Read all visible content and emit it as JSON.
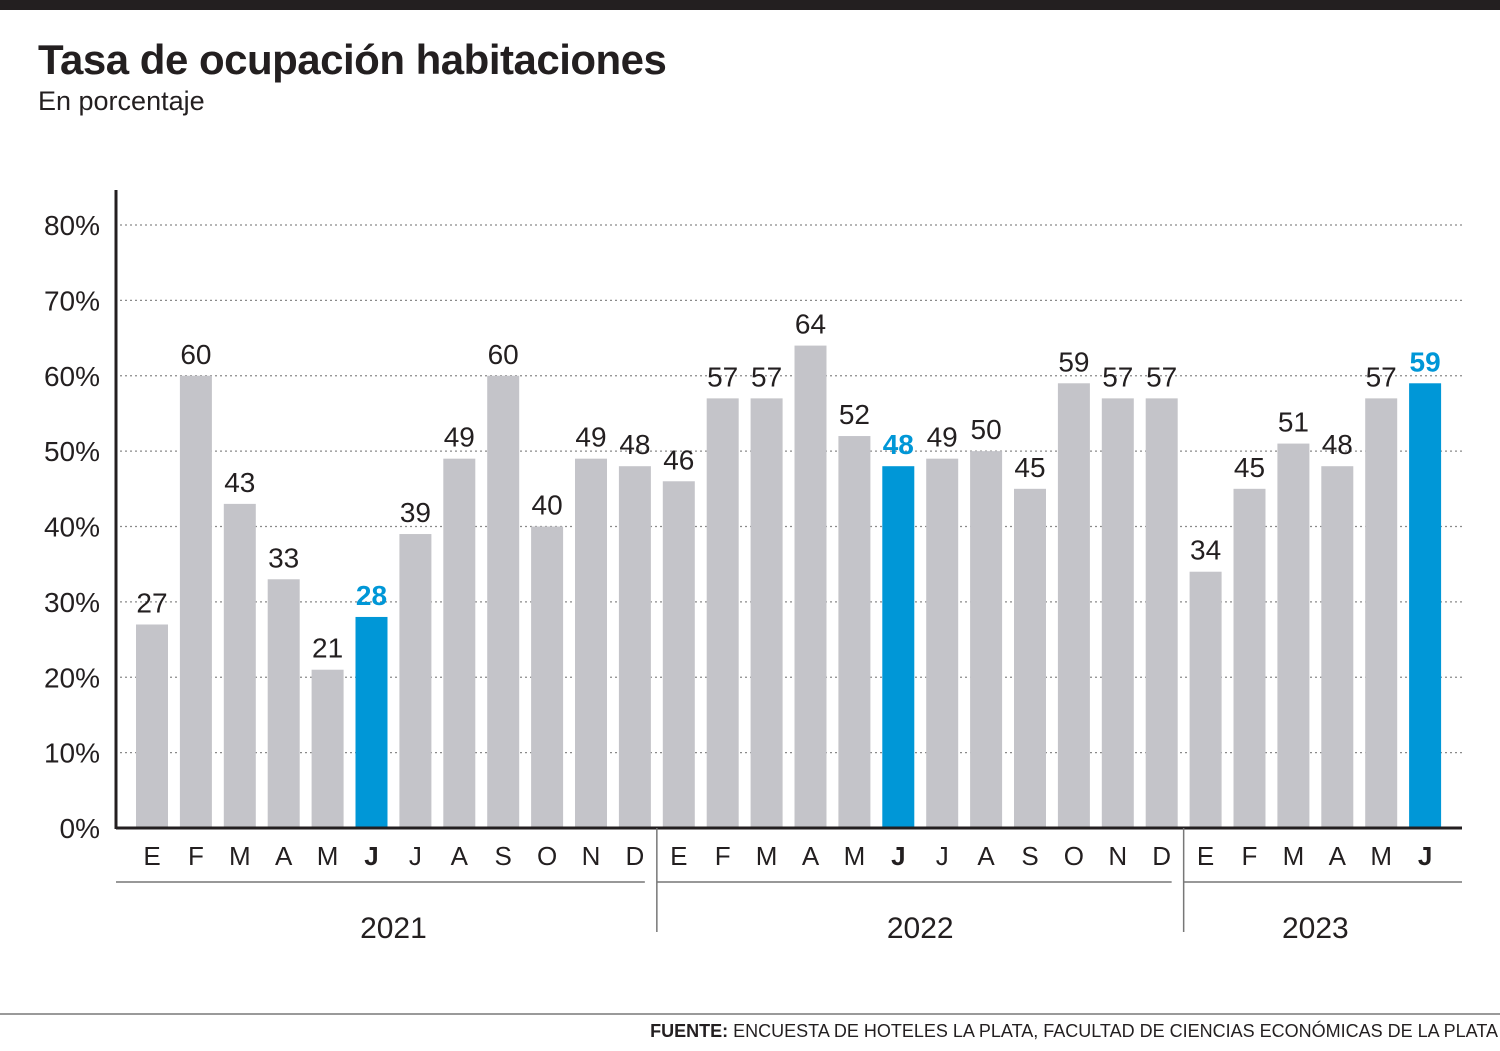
{
  "header": {
    "title": "Tasa de ocupación habitaciones",
    "subtitle": "En porcentaje"
  },
  "footer": {
    "source_label": "FUENTE:",
    "source_text": "ENCUESTA DE HOTELES LA PLATA, FACULTAD DE CIENCIAS ECONÓMICAS DE LA PLATA"
  },
  "colors": {
    "bar": "#c4c4c9",
    "highlight": "#0097d7",
    "text": "#231f20",
    "grid": "#8a8a8a"
  },
  "chart_data": {
    "type": "bar",
    "title": "Tasa de ocupación habitaciones",
    "subtitle": "En porcentaje",
    "xlabel": "",
    "ylabel": "",
    "ylim": [
      0,
      80
    ],
    "yticks": [
      0,
      10,
      20,
      30,
      40,
      50,
      60,
      70,
      80
    ],
    "ytick_suffix": "%",
    "grid": true,
    "categories": [
      "E",
      "F",
      "M",
      "A",
      "M",
      "J",
      "J",
      "A",
      "S",
      "O",
      "N",
      "D",
      "E",
      "F",
      "M",
      "A",
      "M",
      "J",
      "J",
      "A",
      "S",
      "O",
      "N",
      "D",
      "E",
      "F",
      "M",
      "A",
      "M",
      "J"
    ],
    "values": [
      27,
      60,
      43,
      33,
      21,
      28,
      39,
      49,
      60,
      40,
      49,
      48,
      46,
      57,
      57,
      64,
      52,
      48,
      49,
      50,
      45,
      59,
      57,
      57,
      34,
      45,
      51,
      48,
      57,
      59
    ],
    "highlighted_indices": [
      5,
      17,
      29
    ],
    "years": [
      {
        "label": "2021",
        "start": 0,
        "end": 11
      },
      {
        "label": "2022",
        "start": 12,
        "end": 23
      },
      {
        "label": "2023",
        "start": 24,
        "end": 29
      }
    ]
  }
}
